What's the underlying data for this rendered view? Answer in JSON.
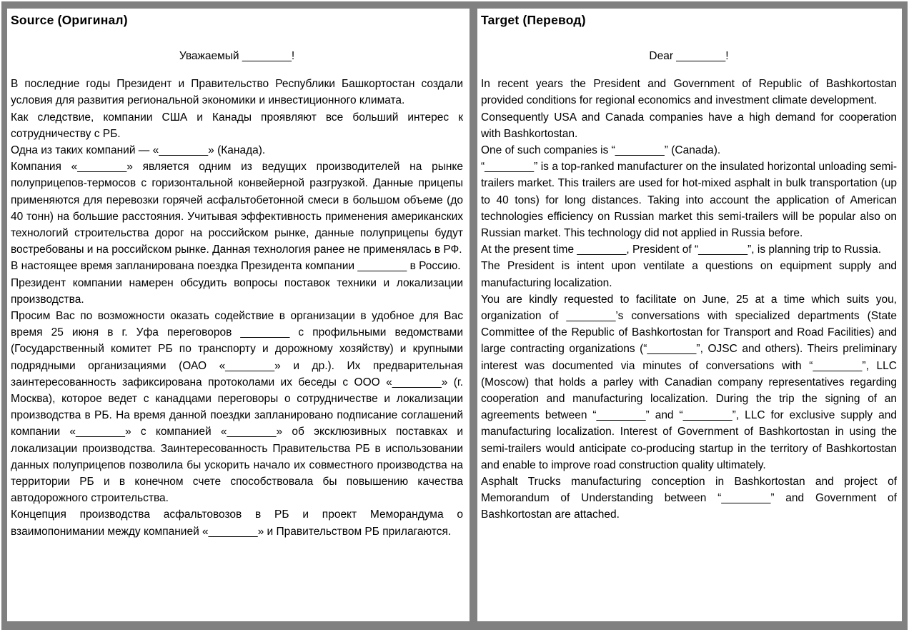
{
  "colors": {
    "frame_gray": "#808080",
    "page_background": "#ffffff",
    "text": "#000000"
  },
  "source": {
    "header": "Source (Оригинал)",
    "salutation": "Уважаемый ________!",
    "paragraphs": [
      "В последние годы Президент и Правительство Республики Башкортостан создали условия для развития региональной экономики и инвестиционного климата.",
      "Как следствие, компании США и Канады проявляют все больший интерес к сотрудничеству с РБ.",
      "Одна из таких компаний — «________» (Канада).",
      "Компания «________» является одним из ведущих производителей на рынке полуприцепов-термосов с горизонтальной конвейерной разгрузкой. Данные прицепы применяются для перевозки горячей асфальтобетонной смеси в большом объеме (до 40 тонн) на большие расстояния. Учитывая эффективность применения американских технологий строительства дорог на российском рынке, данные полуприцепы будут востребованы и на российском рынке. Данная технология ранее не применялась в РФ.",
      "В настоящее время запланирована поездка Президента компании ________ в Россию.",
      "Президент компании намерен обсудить вопросы поставок техники и локализации производства.",
      "Просим Вас по возможности оказать содействие в организации в удобное для Вас время 25 июня в г. Уфа переговоров ________ с профильными ведомствами (Государственный комитет РБ по транспорту и дорожному хозяйству) и крупными подрядными организациями (ОАО «________» и др.). Их предварительная заинтересованность зафиксирована протоколами их беседы с ООО «________» (г. Москва), которое ведет с канадцами переговоры о сотрудничестве и локализации производства  в РБ. На время данной поездки запланировано подписание соглашений компании «________» с компанией «________» об эксклюзивных поставках и локализации производства. Заинтересованность Правительства РБ  в использовании данных полуприцепов позволила бы ускорить начало их совместного производства на территории РБ и в конечном счете способствовала бы повышению качества автодорожного строительства.",
      "Концепция производства асфальтовозов в РБ и проект Меморандума о взаимопонимании между компанией «________» и Правительством РБ прилагаются."
    ]
  },
  "target": {
    "header": "Target (Перевод)",
    "salutation": "Dear ________!",
    "paragraphs": [
      "In recent years the President and Government of Republic of Bashkortostan provided conditions for regional economics and investment climate development.",
      "Consequently USA and Canada companies have a high demand for cooperation with Bashkortostan.",
      "One of such companies is “________” (Canada).",
      "“________” is a top-ranked manufacturer on the insulated horizontal unloading semi-trailers market. This trailers are used for hot-mixed asphalt in bulk transportation (up to 40 tons) for long distances. Taking into account the application of American technologies efficiency on Russian market this semi-trailers will be popular also on Russian market. This technology did not applied in Russia before.",
      "At the present time ________, President of “________”, is planning trip to Russia.",
      "The President is intent upon ventilate a questions on equipment supply and manufacturing localization.",
      "You are kindly requested to facilitate on June, 25 at a time which suits you, organization of ________’s conversations with specialized departments (State Committee of the Republic of Bashkortostan for Transport and Road Facilities) and large contracting organizations (“________”, OJSC and others). Theirs preliminary interest was documented via minutes of conversations with “________”, LLC (Moscow) that holds a parley with Canadian company representatives regarding cooperation and manufacturing localization. During the trip the signing of an agreements between “________” and “________”, LLC for exclusive supply and manufacturing localization. Interest of Government of Bashkortostan in using the semi-trailers would anticipate co-producing startup in the territory of Bashkortostan and enable to improve road construction quality ultimately.",
      " Asphalt Trucks manufacturing conception in Bashkortostan and project of Memorandum of Understanding between “________” and Government of Bashkortostan are attached."
    ]
  }
}
